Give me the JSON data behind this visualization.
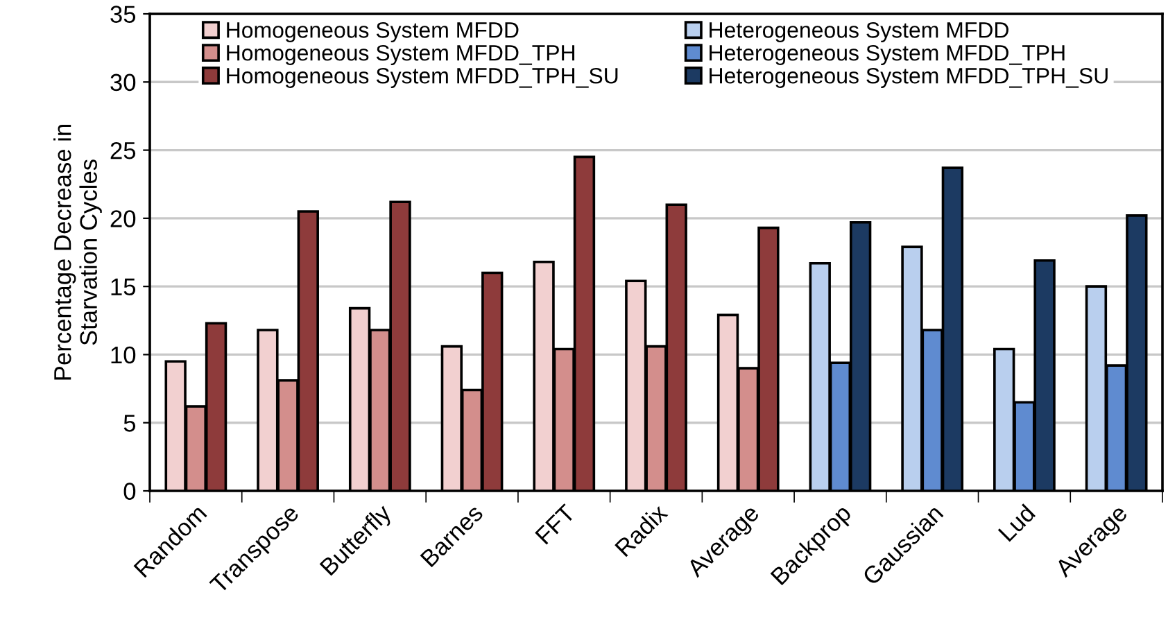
{
  "chart_data": {
    "type": "bar",
    "ylabel": "Percentage Decrease in\nStarvation Cycles",
    "categories": [
      "Random",
      "Transpose",
      "Butterfly",
      "Barnes",
      "FFT",
      "Radix",
      "Average",
      "Backprop",
      "Gaussian",
      "Lud",
      "Average"
    ],
    "series": [
      {
        "name": "Homogeneous System MFDD",
        "color": "#f2d0d0",
        "values": [
          9.5,
          11.8,
          13.4,
          10.6,
          16.8,
          15.4,
          12.9,
          null,
          null,
          null,
          null
        ]
      },
      {
        "name": "Homogeneous System MFDD_TPH",
        "color": "#d38e8c",
        "values": [
          6.2,
          8.1,
          11.8,
          7.4,
          10.4,
          10.6,
          9.0,
          null,
          null,
          null,
          null
        ]
      },
      {
        "name": "Homogeneous System MFDD_TPH_SU",
        "color": "#8e3b3b",
        "values": [
          12.3,
          20.5,
          21.2,
          16.0,
          24.5,
          21.0,
          19.3,
          null,
          null,
          null,
          null
        ]
      },
      {
        "name": "Heterogeneous System MFDD",
        "color": "#b9cfee",
        "values": [
          null,
          null,
          null,
          null,
          null,
          null,
          null,
          16.7,
          17.9,
          10.4,
          15.0
        ]
      },
      {
        "name": "Heterogeneous System MFDD_TPH",
        "color": "#5f8bd0",
        "values": [
          null,
          null,
          null,
          null,
          null,
          null,
          null,
          9.4,
          11.8,
          6.5,
          9.2
        ]
      },
      {
        "name": "Heterogeneous System MFDD_TPH_SU",
        "color": "#1c3a62",
        "values": [
          null,
          null,
          null,
          null,
          null,
          null,
          null,
          19.7,
          23.7,
          16.9,
          20.2
        ]
      }
    ],
    "ylim": [
      0,
      35
    ],
    "yticks": [
      0,
      5,
      10,
      15,
      20,
      25,
      30,
      35
    ],
    "grid": "y",
    "legend": "top"
  }
}
